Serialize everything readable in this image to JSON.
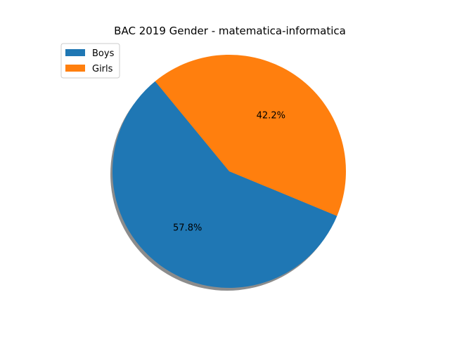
{
  "chart_data": {
    "type": "pie",
    "title": "BAC 2019 Gender - matematica-informatica",
    "slices": [
      {
        "label": "Boys",
        "value": 57.8,
        "pct_label": "57.8%",
        "color": "#1f77b4"
      },
      {
        "label": "Girls",
        "value": 42.2,
        "pct_label": "42.2%",
        "color": "#ff7f0e"
      }
    ],
    "shadow": true,
    "legend_position": "upper-left"
  }
}
